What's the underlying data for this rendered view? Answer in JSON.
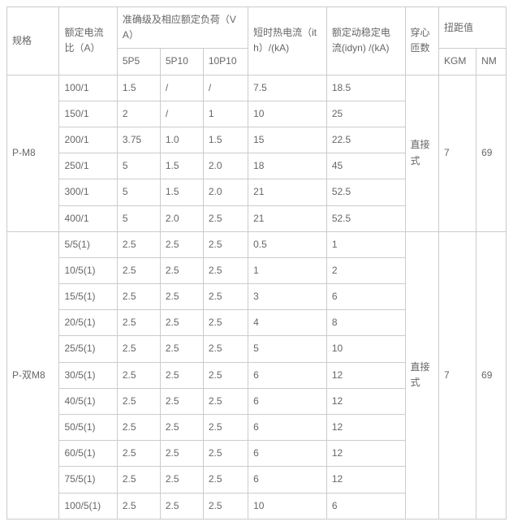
{
  "headers": {
    "spec": "规格",
    "ratio": "额定电流比（A）",
    "acc_group": "准确级及相应额定负荷（VA）",
    "acc_cols": [
      "5P5",
      "5P10",
      "10P10"
    ],
    "ith": "短时热电流（ith）/(kA)",
    "idyn": "额定动稳定电流(idyn) /(kA)",
    "core": "穿心匝数",
    "torque_group": "扭距值",
    "torque_cols": [
      "KGM",
      "NM"
    ]
  },
  "groups": [
    {
      "spec": "P-M8",
      "core": "直接式",
      "kgm": "7",
      "nm": "69",
      "rows": [
        {
          "ratio": "100/1",
          "p5": "1.5",
          "p10": "/",
          "p10b": "/",
          "ith": "7.5",
          "idyn": "18.5"
        },
        {
          "ratio": "150/1",
          "p5": "2",
          "p10": "/",
          "p10b": "1",
          "ith": "10",
          "idyn": "25"
        },
        {
          "ratio": "200/1",
          "p5": "3.75",
          "p10": "1.0",
          "p10b": "1.5",
          "ith": "15",
          "idyn": "22.5"
        },
        {
          "ratio": "250/1",
          "p5": "5",
          "p10": "1.5",
          "p10b": "2.0",
          "ith": "18",
          "idyn": "45"
        },
        {
          "ratio": "300/1",
          "p5": "5",
          "p10": "1.5",
          "p10b": "2.0",
          "ith": "21",
          "idyn": "52.5"
        },
        {
          "ratio": "400/1",
          "p5": "5",
          "p10": "2.0",
          "p10b": "2.5",
          "ith": "21",
          "idyn": "52.5"
        }
      ]
    },
    {
      "spec": "P-双M8",
      "core": "直接式",
      "kgm": "7",
      "nm": "69",
      "rows": [
        {
          "ratio": "5/5(1)",
          "p5": "2.5",
          "p10": "2.5",
          "p10b": "2.5",
          "ith": "0.5",
          "idyn": "1"
        },
        {
          "ratio": "10/5(1)",
          "p5": "2.5",
          "p10": "2.5",
          "p10b": "2.5",
          "ith": "1",
          "idyn": "2"
        },
        {
          "ratio": "15/5(1)",
          "p5": "2.5",
          "p10": "2.5",
          "p10b": "2.5",
          "ith": "3",
          "idyn": "6"
        },
        {
          "ratio": "20/5(1)",
          "p5": "2.5",
          "p10": "2.5",
          "p10b": "2.5",
          "ith": "4",
          "idyn": "8"
        },
        {
          "ratio": "25/5(1)",
          "p5": "2.5",
          "p10": "2.5",
          "p10b": "2.5",
          "ith": "5",
          "idyn": "10"
        },
        {
          "ratio": "30/5(1)",
          "p5": "2.5",
          "p10": "2.5",
          "p10b": "2.5",
          "ith": "6",
          "idyn": "12"
        },
        {
          "ratio": "40/5(1)",
          "p5": "2.5",
          "p10": "2.5",
          "p10b": "2.5",
          "ith": "6",
          "idyn": "12"
        },
        {
          "ratio": "50/5(1)",
          "p5": "2.5",
          "p10": "2.5",
          "p10b": "2.5",
          "ith": "6",
          "idyn": "12"
        },
        {
          "ratio": "60/5(1)",
          "p5": "2.5",
          "p10": "2.5",
          "p10b": "2.5",
          "ith": "6",
          "idyn": "12"
        },
        {
          "ratio": "75/5(1)",
          "p5": "2.5",
          "p10": "2.5",
          "p10b": "2.5",
          "ith": "6",
          "idyn": "12"
        },
        {
          "ratio": "100/5(1)",
          "p5": "2.5",
          "p10": "2.5",
          "p10b": "2.5",
          "ith": "10",
          "idyn": "6"
        }
      ]
    }
  ]
}
